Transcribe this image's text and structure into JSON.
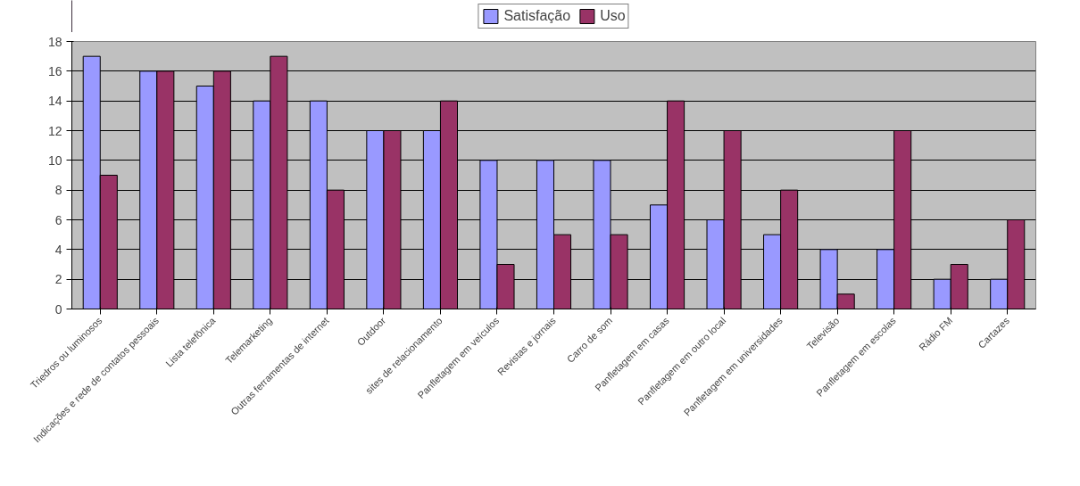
{
  "chart_data": {
    "type": "bar",
    "categories": [
      "Triedros ou luminosos",
      "Indicações e rede de contatos pessoais",
      "Lista telefônica",
      "Telemarketing",
      "Outras ferramentas de internet",
      "Outdoor",
      "sites de relacionamento",
      "Panfletagem em veículos",
      "Revistas e jornais",
      "Carro de som",
      "Panfletagem em casas",
      "Panfletagem em outro local",
      "Panfletagem em universidades",
      "Televisão",
      "Panfletagem em escolas",
      "Rádio FM",
      "Cartazes"
    ],
    "series": [
      {
        "name": "Satisfação",
        "color": "#9999ff",
        "values": [
          17,
          16,
          15,
          14,
          14,
          12,
          12,
          10,
          10,
          10,
          7,
          6,
          5,
          4,
          4,
          2,
          2
        ]
      },
      {
        "name": "Uso",
        "color": "#993366",
        "values": [
          9,
          16,
          16,
          17,
          8,
          12,
          14,
          3,
          5,
          5,
          14,
          12,
          8,
          1,
          12,
          3,
          6
        ]
      }
    ],
    "ylim": [
      0,
      18
    ],
    "yticks": [
      0,
      2,
      4,
      6,
      8,
      10,
      12,
      14,
      16,
      18
    ],
    "grid": "y",
    "legend": "top"
  }
}
